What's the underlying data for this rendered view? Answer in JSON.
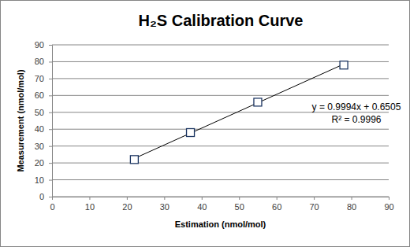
{
  "chart_data": {
    "type": "scatter",
    "title": "H₂S Calibration Curve",
    "x_label": "Estimation (nmol/mol)",
    "y_label": "Measurement (nmol/mol)",
    "x": [
      22,
      37,
      55,
      78
    ],
    "series": [
      {
        "type": "scatter",
        "values": [
          22,
          38,
          56,
          78
        ],
        "color": "#1f3864",
        "marker": "square"
      },
      {
        "type": "line",
        "values": [
          22.64,
          37.63,
          55.62,
          78.6
        ],
        "color": "#000000",
        "line_style": "solid"
      }
    ],
    "annotations": [
      "y = 0.9994x + 0.6505",
      "R² = 0.9996"
    ],
    "xlim": [
      0,
      90
    ],
    "xticks": [
      0,
      10,
      20,
      30,
      40,
      50,
      60,
      70,
      80,
      90
    ],
    "ylim": [
      0,
      90
    ],
    "yticks": [
      0,
      10,
      20,
      30,
      40,
      50,
      60,
      70,
      80,
      90
    ],
    "grid": "y"
  }
}
